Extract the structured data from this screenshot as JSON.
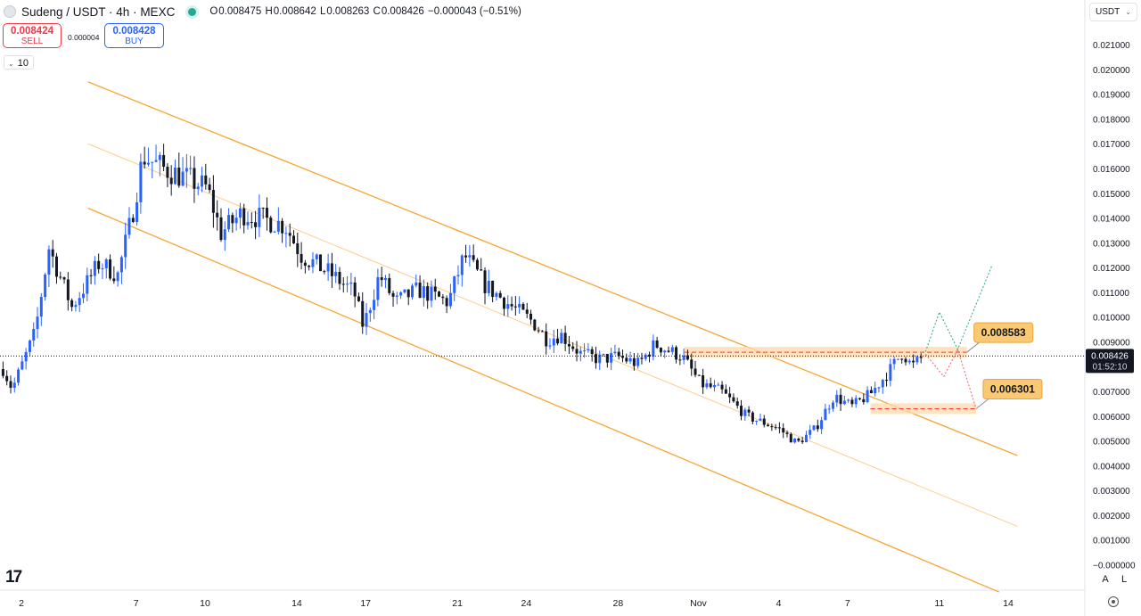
{
  "header": {
    "symbol": "Sudeng / USDT · 4h · MEXC",
    "open_label": "O",
    "open": "0.008475",
    "high_label": "H",
    "high": "0.008642",
    "low_label": "L",
    "low": "0.008263",
    "close_label": "C",
    "close": "0.008426",
    "change": "−0.000043 (−0.51%)"
  },
  "trade": {
    "sell_price": "0.008424",
    "sell_label": "SELL",
    "spread": "0.000004",
    "buy_price": "0.008428",
    "buy_label": "BUY",
    "quantity": "10"
  },
  "currency_selector": "USDT",
  "price_badge": {
    "price": "0.008426",
    "countdown": "01:52:10"
  },
  "zone_labels": {
    "resistance": "0.008583",
    "support": "0.006301"
  },
  "axis_buttons": {
    "auto": "A",
    "log": "L"
  },
  "logo": "17",
  "icons": {
    "live": "status-dot-icon",
    "logo": "tradingview-logo-icon",
    "settings": "gear-icon"
  },
  "colors": {
    "up": "#2962ff",
    "down": "#131722",
    "channel": "#f7a531",
    "zone": "#fdd9a8",
    "zone_line": "#f23645",
    "bull_path": "#2aa876",
    "bear_path": "#ef5a7a",
    "label_bg": "#fbc974"
  },
  "chart_data": {
    "type": "candlestick",
    "interval": "4h",
    "exchange": "MEXC",
    "ylim": [
      -2e-06,
      0.021
    ],
    "y_ticks": [
      "0.021000",
      "0.020000",
      "0.019000",
      "0.018000",
      "0.017000",
      "0.016000",
      "0.015000",
      "0.014000",
      "0.013000",
      "0.012000",
      "0.011000",
      "0.010000",
      "0.009000",
      "0.008000",
      "0.007000",
      "0.006000",
      "0.005000",
      "0.004000",
      "0.003000",
      "0.002000",
      "0.001000",
      "−0.000000"
    ],
    "x_ticks": [
      "2",
      "7",
      "10",
      "14",
      "17",
      "21",
      "24",
      "28",
      "Nov",
      "4",
      "7",
      "11",
      "14"
    ],
    "x_tick_days": [
      0,
      5,
      8,
      12,
      15,
      19,
      22,
      26,
      29.5,
      33,
      36,
      40,
      43
    ],
    "x_range_days": [
      0,
      43
    ],
    "last_price": 0.008426,
    "waypoints": [
      {
        "day": -0.8,
        "close": 0.0079
      },
      {
        "day": -0.4,
        "close": 0.0071
      },
      {
        "day": 0.6,
        "close": 0.0094
      },
      {
        "day": 1.2,
        "close": 0.0128
      },
      {
        "day": 2.2,
        "close": 0.0104
      },
      {
        "day": 3.4,
        "close": 0.0122
      },
      {
        "day": 4.2,
        "close": 0.0117
      },
      {
        "day": 4.8,
        "close": 0.014
      },
      {
        "day": 5.3,
        "close": 0.0165
      },
      {
        "day": 6.2,
        "close": 0.016
      },
      {
        "day": 7.2,
        "close": 0.0156
      },
      {
        "day": 8.1,
        "close": 0.0152
      },
      {
        "day": 8.7,
        "close": 0.0134
      },
      {
        "day": 9.6,
        "close": 0.0142
      },
      {
        "day": 10.4,
        "close": 0.014
      },
      {
        "day": 11.5,
        "close": 0.0137
      },
      {
        "day": 12.2,
        "close": 0.0125
      },
      {
        "day": 13.4,
        "close": 0.0118
      },
      {
        "day": 14.5,
        "close": 0.011
      },
      {
        "day": 14.9,
        "close": 0.0096
      },
      {
        "day": 15.6,
        "close": 0.0117
      },
      {
        "day": 16.3,
        "close": 0.0106
      },
      {
        "day": 17.3,
        "close": 0.0111
      },
      {
        "day": 18.6,
        "close": 0.0106
      },
      {
        "day": 19.3,
        "close": 0.0125
      },
      {
        "day": 20.2,
        "close": 0.0113
      },
      {
        "day": 21.4,
        "close": 0.0104
      },
      {
        "day": 22.3,
        "close": 0.0098
      },
      {
        "day": 22.9,
        "close": 0.0091
      },
      {
        "day": 23.5,
        "close": 0.0093
      },
      {
        "day": 24.4,
        "close": 0.0085
      },
      {
        "day": 25.2,
        "close": 0.0083
      },
      {
        "day": 26.0,
        "close": 0.0084
      },
      {
        "day": 26.9,
        "close": 0.0081
      },
      {
        "day": 27.6,
        "close": 0.0089
      },
      {
        "day": 28.8,
        "close": 0.0084
      },
      {
        "day": 29.6,
        "close": 0.0073
      },
      {
        "day": 30.5,
        "close": 0.007
      },
      {
        "day": 31.6,
        "close": 0.006
      },
      {
        "day": 33.0,
        "close": 0.0055
      },
      {
        "day": 33.8,
        "close": 0.0049
      },
      {
        "day": 34.6,
        "close": 0.0055
      },
      {
        "day": 35.4,
        "close": 0.0068
      },
      {
        "day": 36.2,
        "close": 0.0064
      },
      {
        "day": 37.0,
        "close": 0.0069
      },
      {
        "day": 37.8,
        "close": 0.0078
      },
      {
        "day": 38.4,
        "close": 0.0086
      },
      {
        "day": 38.8,
        "close": 0.008
      },
      {
        "day": 39.3,
        "close": 0.0084
      }
    ],
    "channel": {
      "upper": [
        {
          "day": 2.9,
          "price": 0.0195
        },
        {
          "day": 43.4,
          "price": 0.00441
        }
      ],
      "middle": [
        {
          "day": 2.9,
          "price": 0.017
        },
        {
          "day": 43.4,
          "price": 0.00155
        }
      ],
      "lower": [
        {
          "day": 2.9,
          "price": 0.0144
        },
        {
          "day": 42.6,
          "price": -0.0011
        }
      ]
    },
    "zones": [
      {
        "name": "resistance",
        "price": 0.008583,
        "from_day": 28.9,
        "to_day": 41.2
      },
      {
        "name": "support",
        "price": 0.006301,
        "from_day": 37.0,
        "to_day": 41.6
      }
    ],
    "projections": [
      {
        "name": "bullish",
        "points": [
          {
            "day": 39.4,
            "price": 0.0086
          },
          {
            "day": 40.0,
            "price": 0.0102
          },
          {
            "day": 40.8,
            "price": 0.0087
          },
          {
            "day": 42.3,
            "price": 0.0121
          }
        ]
      },
      {
        "name": "bearish",
        "points": [
          {
            "day": 39.4,
            "price": 0.0085
          },
          {
            "day": 40.2,
            "price": 0.0076
          },
          {
            "day": 40.8,
            "price": 0.0087
          },
          {
            "day": 41.6,
            "price": 0.0063
          }
        ]
      }
    ]
  }
}
